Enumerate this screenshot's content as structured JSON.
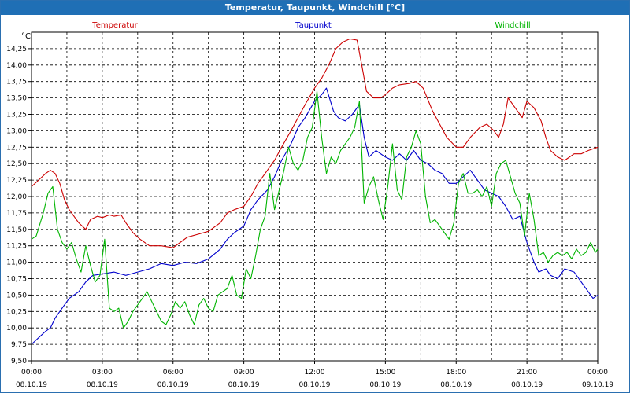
{
  "window": {
    "title": "Temperatur, Taupunkt, Windchill [°C]"
  },
  "chart_data": {
    "type": "line",
    "title": "Temperatur, Taupunkt, Windchill [°C]",
    "unit_label": "°C",
    "ylim": [
      9.5,
      14.5
    ],
    "yticks": [
      "9,50",
      "9,75",
      "10,00",
      "10,25",
      "10,50",
      "10,75",
      "11,00",
      "11,25",
      "11,50",
      "11,75",
      "12,00",
      "12,25",
      "12,50",
      "12,75",
      "13,00",
      "13,25",
      "13,50",
      "13,75",
      "14,00",
      "14,25"
    ],
    "xlim_hours": [
      0,
      24
    ],
    "xticks": [
      {
        "time": "00:00",
        "date": "08.10.19"
      },
      {
        "time": "03:00",
        "date": "08.10.19"
      },
      {
        "time": "06:00",
        "date": "08.10.19"
      },
      {
        "time": "09:00",
        "date": "08.10.19"
      },
      {
        "time": "12:00",
        "date": "08.10.19"
      },
      {
        "time": "15:00",
        "date": "08.10.19"
      },
      {
        "time": "18:00",
        "date": "08.10.19"
      },
      {
        "time": "21:00",
        "date": "08.10.19"
      },
      {
        "time": "00:00",
        "date": "09.10.19"
      }
    ],
    "grid": true,
    "legend_placement": "top",
    "series": [
      {
        "name": "Temperatur",
        "color": "#cc0000",
        "points": [
          [
            0.0,
            12.15
          ],
          [
            0.3,
            12.25
          ],
          [
            0.6,
            12.35
          ],
          [
            0.8,
            12.4
          ],
          [
            1.0,
            12.35
          ],
          [
            1.2,
            12.2
          ],
          [
            1.4,
            11.95
          ],
          [
            1.6,
            11.8
          ],
          [
            1.8,
            11.7
          ],
          [
            2.0,
            11.6
          ],
          [
            2.3,
            11.5
          ],
          [
            2.5,
            11.65
          ],
          [
            2.8,
            11.7
          ],
          [
            3.0,
            11.68
          ],
          [
            3.3,
            11.72
          ],
          [
            3.5,
            11.7
          ],
          [
            3.8,
            11.72
          ],
          [
            4.0,
            11.6
          ],
          [
            4.3,
            11.45
          ],
          [
            4.6,
            11.35
          ],
          [
            5.0,
            11.25
          ],
          [
            5.5,
            11.25
          ],
          [
            6.0,
            11.22
          ],
          [
            6.3,
            11.3
          ],
          [
            6.6,
            11.38
          ],
          [
            7.0,
            11.42
          ],
          [
            7.5,
            11.47
          ],
          [
            8.0,
            11.6
          ],
          [
            8.3,
            11.75
          ],
          [
            8.6,
            11.8
          ],
          [
            9.0,
            11.85
          ],
          [
            9.3,
            12.0
          ],
          [
            9.6,
            12.2
          ],
          [
            10.0,
            12.4
          ],
          [
            10.3,
            12.55
          ],
          [
            10.6,
            12.75
          ],
          [
            11.0,
            13.0
          ],
          [
            11.3,
            13.2
          ],
          [
            11.6,
            13.4
          ],
          [
            12.0,
            13.65
          ],
          [
            12.3,
            13.8
          ],
          [
            12.6,
            14.0
          ],
          [
            12.9,
            14.25
          ],
          [
            13.2,
            14.35
          ],
          [
            13.5,
            14.4
          ],
          [
            13.8,
            14.38
          ],
          [
            14.0,
            14.0
          ],
          [
            14.2,
            13.6
          ],
          [
            14.5,
            13.5
          ],
          [
            14.8,
            13.5
          ],
          [
            15.0,
            13.55
          ],
          [
            15.3,
            13.65
          ],
          [
            15.6,
            13.7
          ],
          [
            16.0,
            13.72
          ],
          [
            16.3,
            13.75
          ],
          [
            16.6,
            13.65
          ],
          [
            17.0,
            13.3
          ],
          [
            17.3,
            13.1
          ],
          [
            17.6,
            12.9
          ],
          [
            18.0,
            12.75
          ],
          [
            18.3,
            12.75
          ],
          [
            18.6,
            12.9
          ],
          [
            19.0,
            13.05
          ],
          [
            19.3,
            13.1
          ],
          [
            19.6,
            13.0
          ],
          [
            19.8,
            12.9
          ],
          [
            20.0,
            13.1
          ],
          [
            20.2,
            13.5
          ],
          [
            20.5,
            13.35
          ],
          [
            20.8,
            13.2
          ],
          [
            21.0,
            13.45
          ],
          [
            21.3,
            13.35
          ],
          [
            21.6,
            13.15
          ],
          [
            21.8,
            12.9
          ],
          [
            22.0,
            12.7
          ],
          [
            22.3,
            12.6
          ],
          [
            22.6,
            12.55
          ],
          [
            23.0,
            12.65
          ],
          [
            23.3,
            12.65
          ],
          [
            23.6,
            12.7
          ],
          [
            24.0,
            12.75
          ]
        ]
      },
      {
        "name": "Taupunkt",
        "color": "#0000cc",
        "points": [
          [
            0.0,
            9.75
          ],
          [
            0.3,
            9.85
          ],
          [
            0.6,
            9.95
          ],
          [
            0.8,
            10.0
          ],
          [
            1.0,
            10.15
          ],
          [
            1.3,
            10.3
          ],
          [
            1.6,
            10.45
          ],
          [
            2.0,
            10.55
          ],
          [
            2.3,
            10.7
          ],
          [
            2.6,
            10.8
          ],
          [
            3.0,
            10.82
          ],
          [
            3.5,
            10.85
          ],
          [
            4.0,
            10.8
          ],
          [
            4.5,
            10.85
          ],
          [
            5.0,
            10.9
          ],
          [
            5.5,
            10.98
          ],
          [
            6.0,
            10.95
          ],
          [
            6.5,
            11.0
          ],
          [
            7.0,
            10.98
          ],
          [
            7.5,
            11.05
          ],
          [
            8.0,
            11.2
          ],
          [
            8.3,
            11.35
          ],
          [
            8.6,
            11.45
          ],
          [
            9.0,
            11.55
          ],
          [
            9.3,
            11.8
          ],
          [
            9.6,
            11.95
          ],
          [
            10.0,
            12.1
          ],
          [
            10.3,
            12.3
          ],
          [
            10.6,
            12.55
          ],
          [
            11.0,
            12.8
          ],
          [
            11.3,
            13.05
          ],
          [
            11.6,
            13.2
          ],
          [
            12.0,
            13.45
          ],
          [
            12.3,
            13.55
          ],
          [
            12.5,
            13.65
          ],
          [
            12.8,
            13.3
          ],
          [
            13.0,
            13.2
          ],
          [
            13.3,
            13.15
          ],
          [
            13.6,
            13.25
          ],
          [
            13.9,
            13.4
          ],
          [
            14.1,
            12.9
          ],
          [
            14.3,
            12.6
          ],
          [
            14.6,
            12.7
          ],
          [
            15.0,
            12.6
          ],
          [
            15.3,
            12.55
          ],
          [
            15.6,
            12.65
          ],
          [
            15.9,
            12.55
          ],
          [
            16.2,
            12.7
          ],
          [
            16.5,
            12.55
          ],
          [
            16.8,
            12.5
          ],
          [
            17.1,
            12.4
          ],
          [
            17.4,
            12.35
          ],
          [
            17.7,
            12.2
          ],
          [
            18.0,
            12.2
          ],
          [
            18.3,
            12.3
          ],
          [
            18.6,
            12.4
          ],
          [
            18.9,
            12.25
          ],
          [
            19.2,
            12.1
          ],
          [
            19.5,
            12.05
          ],
          [
            19.8,
            12.0
          ],
          [
            20.1,
            11.85
          ],
          [
            20.4,
            11.65
          ],
          [
            20.7,
            11.7
          ],
          [
            21.0,
            11.3
          ],
          [
            21.3,
            11.0
          ],
          [
            21.5,
            10.85
          ],
          [
            21.8,
            10.9
          ],
          [
            22.0,
            10.8
          ],
          [
            22.3,
            10.75
          ],
          [
            22.6,
            10.9
          ],
          [
            23.0,
            10.85
          ],
          [
            23.3,
            10.7
          ],
          [
            23.6,
            10.55
          ],
          [
            23.8,
            10.45
          ],
          [
            24.0,
            10.5
          ]
        ]
      },
      {
        "name": "Windchill",
        "color": "#00b400",
        "points": [
          [
            0.0,
            11.35
          ],
          [
            0.2,
            11.4
          ],
          [
            0.5,
            11.75
          ],
          [
            0.7,
            12.05
          ],
          [
            0.9,
            12.15
          ],
          [
            1.1,
            11.5
          ],
          [
            1.3,
            11.3
          ],
          [
            1.5,
            11.2
          ],
          [
            1.7,
            11.3
          ],
          [
            1.9,
            11.05
          ],
          [
            2.1,
            10.85
          ],
          [
            2.3,
            11.25
          ],
          [
            2.5,
            10.95
          ],
          [
            2.7,
            10.7
          ],
          [
            2.9,
            10.8
          ],
          [
            3.1,
            11.35
          ],
          [
            3.3,
            10.3
          ],
          [
            3.5,
            10.25
          ],
          [
            3.7,
            10.3
          ],
          [
            3.9,
            10.0
          ],
          [
            4.1,
            10.1
          ],
          [
            4.3,
            10.25
          ],
          [
            4.5,
            10.35
          ],
          [
            4.7,
            10.45
          ],
          [
            4.9,
            10.55
          ],
          [
            5.1,
            10.4
          ],
          [
            5.3,
            10.25
          ],
          [
            5.5,
            10.1
          ],
          [
            5.7,
            10.05
          ],
          [
            5.9,
            10.2
          ],
          [
            6.1,
            10.4
          ],
          [
            6.3,
            10.3
          ],
          [
            6.5,
            10.4
          ],
          [
            6.7,
            10.2
          ],
          [
            6.9,
            10.05
          ],
          [
            7.1,
            10.35
          ],
          [
            7.3,
            10.45
          ],
          [
            7.5,
            10.3
          ],
          [
            7.7,
            10.25
          ],
          [
            7.9,
            10.5
          ],
          [
            8.1,
            10.55
          ],
          [
            8.3,
            10.6
          ],
          [
            8.5,
            10.8
          ],
          [
            8.7,
            10.5
          ],
          [
            8.9,
            10.45
          ],
          [
            9.1,
            10.9
          ],
          [
            9.3,
            10.75
          ],
          [
            9.5,
            11.1
          ],
          [
            9.7,
            11.5
          ],
          [
            9.9,
            11.7
          ],
          [
            10.1,
            12.35
          ],
          [
            10.3,
            11.8
          ],
          [
            10.5,
            12.1
          ],
          [
            10.7,
            12.4
          ],
          [
            10.9,
            12.75
          ],
          [
            11.1,
            12.5
          ],
          [
            11.3,
            12.4
          ],
          [
            11.5,
            12.55
          ],
          [
            11.7,
            12.9
          ],
          [
            11.9,
            13.05
          ],
          [
            12.1,
            13.6
          ],
          [
            12.3,
            12.9
          ],
          [
            12.5,
            12.35
          ],
          [
            12.7,
            12.6
          ],
          [
            12.9,
            12.5
          ],
          [
            13.1,
            12.7
          ],
          [
            13.3,
            12.8
          ],
          [
            13.5,
            12.9
          ],
          [
            13.7,
            13.05
          ],
          [
            13.9,
            13.45
          ],
          [
            14.1,
            11.9
          ],
          [
            14.3,
            12.15
          ],
          [
            14.5,
            12.3
          ],
          [
            14.7,
            11.95
          ],
          [
            14.9,
            11.65
          ],
          [
            15.1,
            12.15
          ],
          [
            15.3,
            12.8
          ],
          [
            15.5,
            12.1
          ],
          [
            15.7,
            11.95
          ],
          [
            15.9,
            12.6
          ],
          [
            16.1,
            12.75
          ],
          [
            16.3,
            13.0
          ],
          [
            16.5,
            12.8
          ],
          [
            16.7,
            12.0
          ],
          [
            16.9,
            11.6
          ],
          [
            17.1,
            11.65
          ],
          [
            17.3,
            11.55
          ],
          [
            17.5,
            11.45
          ],
          [
            17.7,
            11.35
          ],
          [
            17.9,
            11.6
          ],
          [
            18.1,
            12.2
          ],
          [
            18.3,
            12.35
          ],
          [
            18.5,
            12.05
          ],
          [
            18.7,
            12.05
          ],
          [
            18.9,
            12.1
          ],
          [
            19.1,
            12.0
          ],
          [
            19.3,
            12.15
          ],
          [
            19.5,
            11.85
          ],
          [
            19.7,
            12.35
          ],
          [
            19.9,
            12.5
          ],
          [
            20.1,
            12.55
          ],
          [
            20.3,
            12.3
          ],
          [
            20.5,
            12.05
          ],
          [
            20.7,
            11.9
          ],
          [
            20.9,
            11.4
          ],
          [
            21.1,
            12.05
          ],
          [
            21.3,
            11.65
          ],
          [
            21.5,
            11.1
          ],
          [
            21.7,
            11.15
          ],
          [
            21.9,
            11.0
          ],
          [
            22.1,
            11.1
          ],
          [
            22.3,
            11.15
          ],
          [
            22.5,
            11.1
          ],
          [
            22.7,
            11.15
          ],
          [
            22.9,
            11.05
          ],
          [
            23.1,
            11.2
          ],
          [
            23.3,
            11.1
          ],
          [
            23.5,
            11.15
          ],
          [
            23.7,
            11.3
          ],
          [
            23.9,
            11.15
          ],
          [
            24.0,
            11.2
          ]
        ]
      }
    ]
  }
}
